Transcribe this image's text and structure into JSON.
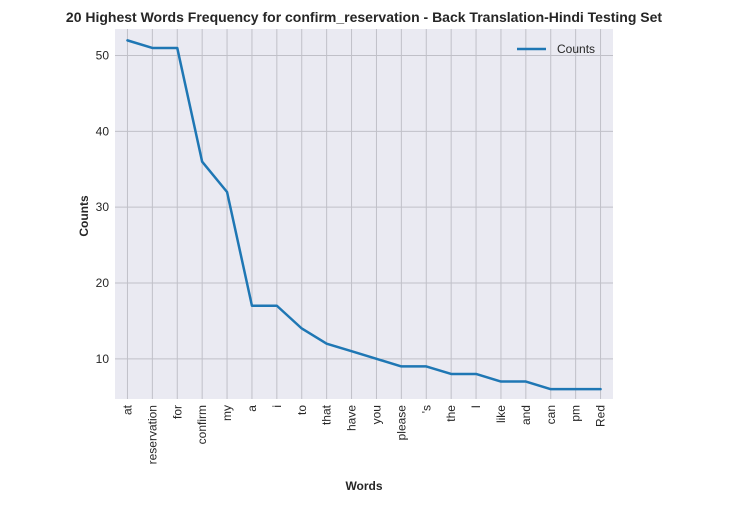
{
  "chart_data": {
    "type": "line",
    "title": "20 Highest Words Frequency for confirm_reservation - Back Translation-Hindi Testing Set",
    "xlabel": "Words",
    "ylabel": "Counts",
    "categories": [
      "at",
      "reservation",
      "for",
      "confirm",
      "my",
      "a",
      "i",
      "to",
      "that",
      "have",
      "you",
      "please",
      "'s",
      "the",
      "I",
      "like",
      "and",
      "can",
      "pm",
      "Red"
    ],
    "series": [
      {
        "name": "Counts",
        "values": [
          52,
          51,
          51,
          36,
          32,
          17,
          17,
          14,
          12,
          11,
          10,
          9,
          9,
          8,
          8,
          7,
          7,
          6,
          6,
          6
        ]
      }
    ],
    "yticks": [
      10,
      20,
      30,
      40,
      50
    ],
    "ylim": [
      4.7,
      53.5
    ],
    "grid": true,
    "legend_position": "top-right",
    "colors": {
      "line": "#1f77b4",
      "plot_background": "#eaeaf2",
      "grid": "#c0c0c8",
      "text": "#262626"
    }
  }
}
